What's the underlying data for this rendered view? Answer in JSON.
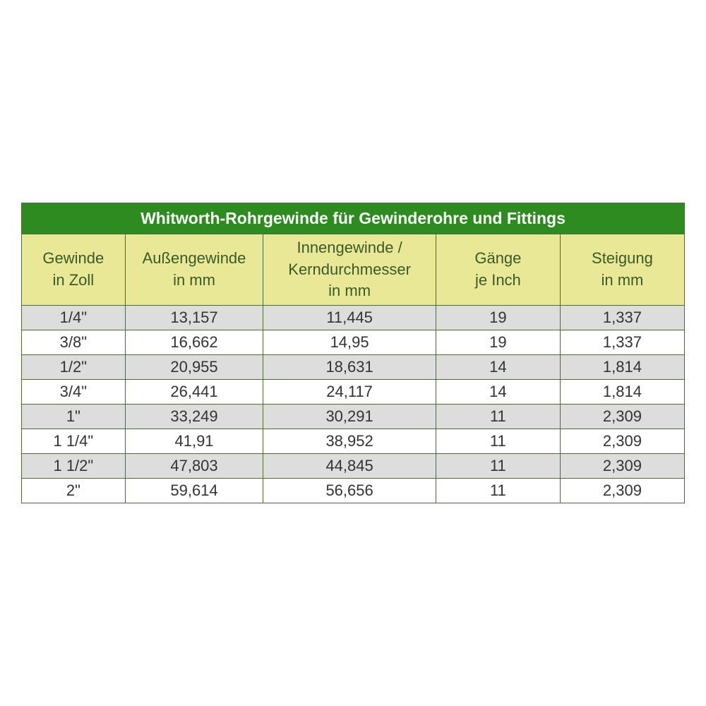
{
  "table": {
    "type": "table",
    "title": "Whitworth-Rohrgewinde für Gewinderohre und Fittings",
    "title_bg_color": "#2e8b1f",
    "title_text_color": "#ffffff",
    "header_bg_color": "#e8e896",
    "header_text_color": "#3a5a28",
    "odd_row_bg_color": "#dddddd",
    "even_row_bg_color": "#ffffff",
    "border_color": "#4a6e3a",
    "title_fontsize": 23,
    "header_fontsize": 22,
    "cell_fontsize": 22,
    "columns": [
      {
        "line1": "Gewinde",
        "line2": "in Zoll",
        "width_pct": 15
      },
      {
        "line1": "Außengewinde",
        "line2": "in mm",
        "width_pct": 20
      },
      {
        "line1": "Innengewinde /",
        "line2": "Kerndurchmesser",
        "line3": "in mm",
        "width_pct": 25
      },
      {
        "line1": "Gänge",
        "line2": "je Inch",
        "width_pct": 18
      },
      {
        "line1": "Steigung",
        "line2": "in mm",
        "width_pct": 18
      }
    ],
    "rows": [
      [
        "1/4\"",
        "13,157",
        "11,445",
        "19",
        "1,337"
      ],
      [
        "3/8\"",
        "16,662",
        "14,95",
        "19",
        "1,337"
      ],
      [
        "1/2\"",
        "20,955",
        "18,631",
        "14",
        "1,814"
      ],
      [
        "3/4\"",
        "26,441",
        "24,117",
        "14",
        "1,814"
      ],
      [
        "1\"",
        "33,249",
        "30,291",
        "11",
        "2,309"
      ],
      [
        "1 1/4\"",
        "41,91",
        "38,952",
        "11",
        "2,309"
      ],
      [
        "1 1/2\"",
        "47,803",
        "44,845",
        "11",
        "2,309"
      ],
      [
        "2\"",
        "59,614",
        "56,656",
        "11",
        "2,309"
      ]
    ]
  }
}
